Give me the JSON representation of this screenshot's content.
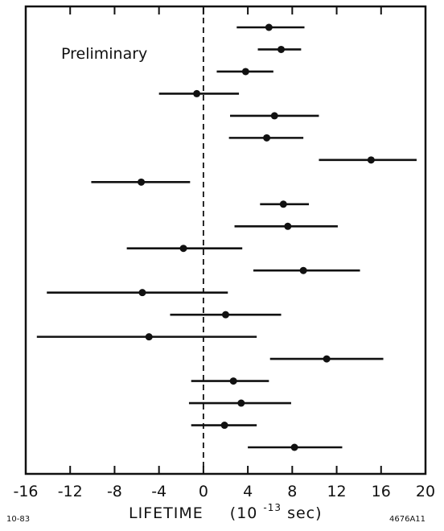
{
  "chart_data": {
    "type": "scatter",
    "title": "",
    "annotation": "Preliminary",
    "xlabel": {
      "main": "LIFETIME",
      "unit_open": "(10",
      "unit_exp": "-13",
      "unit_close": " sec)"
    },
    "ylabel": "",
    "xlim": [
      -16,
      20
    ],
    "xticks": [
      -16,
      -12,
      -8,
      -4,
      0,
      4,
      8,
      12,
      16,
      20
    ],
    "xtick_labels": [
      "-16",
      "-12",
      "-8",
      "-4",
      "0",
      "4",
      "8",
      "12",
      "16",
      "20"
    ],
    "reference_line": {
      "x": 0,
      "style": "dashed"
    },
    "grid": false,
    "legend": "none",
    "points": [
      {
        "x": 5.9,
        "low": 3.0,
        "high": 9.1
      },
      {
        "x": 7.0,
        "low": 4.9,
        "high": 8.8
      },
      {
        "x": 3.8,
        "low": 1.2,
        "high": 6.3
      },
      {
        "x": -0.6,
        "low": -4.0,
        "high": 3.2
      },
      {
        "x": 6.4,
        "low": 2.4,
        "high": 10.4
      },
      {
        "x": 5.7,
        "low": 2.3,
        "high": 9.0
      },
      {
        "x": 15.1,
        "low": 10.4,
        "high": 19.2
      },
      {
        "x": -5.6,
        "low": -10.1,
        "high": -1.2
      },
      {
        "x": 7.2,
        "low": 5.1,
        "high": 9.5
      },
      {
        "x": 7.6,
        "low": 2.8,
        "high": 12.1
      },
      {
        "x": -1.8,
        "low": -6.9,
        "high": 3.5
      },
      {
        "x": 9.0,
        "low": 4.5,
        "high": 14.1
      },
      {
        "x": -5.5,
        "low": -14.1,
        "high": 2.2
      },
      {
        "x": 2.0,
        "low": -3.0,
        "high": 7.0
      },
      {
        "x": -4.9,
        "low": -15.0,
        "high": 4.8
      },
      {
        "x": 11.1,
        "low": 6.0,
        "high": 16.2
      },
      {
        "x": 2.7,
        "low": -1.1,
        "high": 5.9
      },
      {
        "x": 3.4,
        "low": -1.3,
        "high": 7.9
      },
      {
        "x": 1.9,
        "low": -1.1,
        "high": 4.8
      },
      {
        "x": 8.2,
        "low": 4.0,
        "high": 12.5
      }
    ]
  },
  "footer": {
    "left_code": "10-83",
    "right_code": "4676A11"
  }
}
